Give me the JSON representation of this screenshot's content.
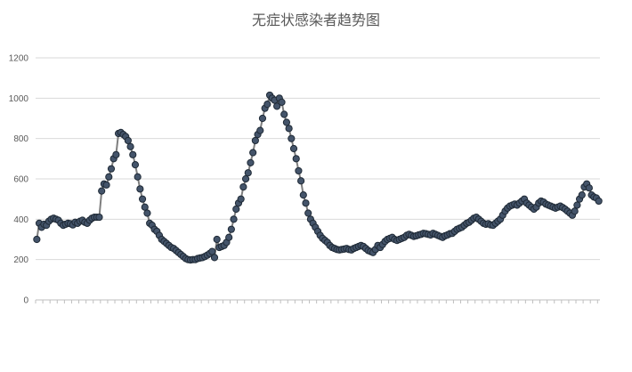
{
  "chart_data": {
    "type": "line",
    "title": "无症状感染者趋势图",
    "xlabel": "",
    "ylabel": "",
    "ylim": [
      0,
      1200
    ],
    "yticks": [
      0,
      200,
      400,
      600,
      800,
      1000,
      1200
    ],
    "grid": true,
    "legend": "none",
    "series": [
      {
        "line_color": "#7f7f7f",
        "marker_color": "#44546a",
        "values": [
          300,
          380,
          360,
          375,
          370,
          390,
          400,
          405,
          400,
          395,
          380,
          370,
          375,
          380,
          378,
          372,
          385,
          380,
          390,
          395,
          385,
          380,
          395,
          405,
          410,
          410,
          410,
          540,
          575,
          570,
          610,
          650,
          700,
          720,
          825,
          830,
          820,
          810,
          790,
          760,
          720,
          670,
          610,
          550,
          500,
          460,
          430,
          380,
          370,
          350,
          340,
          320,
          300,
          290,
          280,
          270,
          260,
          255,
          245,
          235,
          225,
          215,
          205,
          200,
          198,
          200,
          200,
          205,
          208,
          210,
          215,
          222,
          230,
          240,
          210,
          300,
          260,
          265,
          270,
          285,
          310,
          350,
          400,
          450,
          480,
          500,
          560,
          600,
          630,
          680,
          730,
          790,
          820,
          840,
          900,
          950,
          970,
          1015,
          1000,
          990,
          960,
          1000,
          980,
          920,
          880,
          850,
          800,
          750,
          700,
          640,
          590,
          520,
          480,
          430,
          400,
          380,
          360,
          340,
          320,
          305,
          295,
          285,
          270,
          260,
          255,
          250,
          248,
          250,
          252,
          255,
          250,
          248,
          255,
          260,
          265,
          270,
          265,
          255,
          245,
          240,
          235,
          250,
          270,
          260,
          275,
          290,
          300,
          305,
          310,
          300,
          295,
          300,
          305,
          310,
          320,
          325,
          320,
          315,
          318,
          322,
          325,
          330,
          328,
          325,
          322,
          330,
          325,
          320,
          315,
          310,
          318,
          322,
          328,
          330,
          340,
          350,
          355,
          360,
          370,
          380,
          385,
          395,
          405,
          410,
          400,
          390,
          380,
          375,
          378,
          372,
          370,
          380,
          390,
          400,
          420,
          440,
          455,
          465,
          470,
          475,
          470,
          480,
          490,
          500,
          480,
          470,
          460,
          450,
          460,
          480,
          490,
          485,
          475,
          470,
          465,
          460,
          455,
          460,
          465,
          458,
          450,
          440,
          430,
          420,
          440,
          470,
          500,
          520,
          560,
          575,
          555,
          520,
          510,
          505,
          490
        ]
      }
    ]
  }
}
